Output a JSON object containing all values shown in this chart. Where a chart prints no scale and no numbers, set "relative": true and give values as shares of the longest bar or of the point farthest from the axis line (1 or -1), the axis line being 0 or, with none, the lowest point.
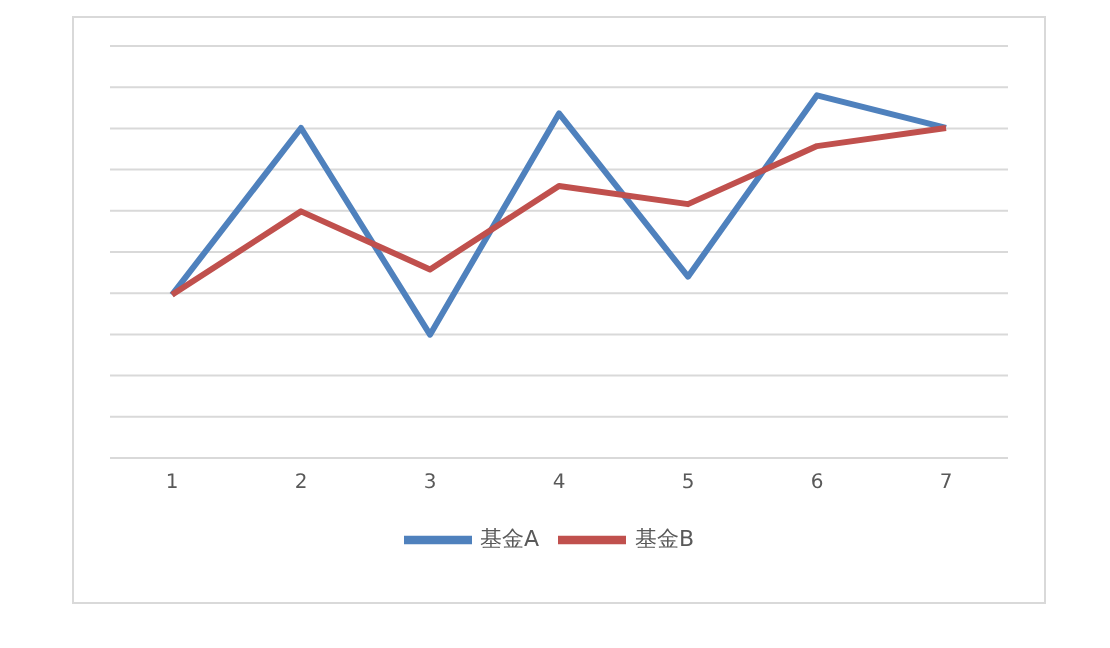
{
  "chart_data": {
    "type": "line",
    "relative": true,
    "categories": [
      "1",
      "2",
      "3",
      "4",
      "5",
      "6",
      "7"
    ],
    "series": [
      {
        "name": "基金A",
        "color": "#4f81bd",
        "values": [
          0.45,
          0.91,
          0.34,
          0.95,
          0.5,
          1,
          0.91
        ]
      },
      {
        "name": "基金B",
        "color": "#c0504d",
        "values": [
          0.45,
          0.68,
          0.52,
          0.75,
          0.7,
          0.86,
          0.91
        ]
      }
    ],
    "grid": "y",
    "legend": "bottom",
    "marker": "none",
    "line_style": "solid"
  }
}
